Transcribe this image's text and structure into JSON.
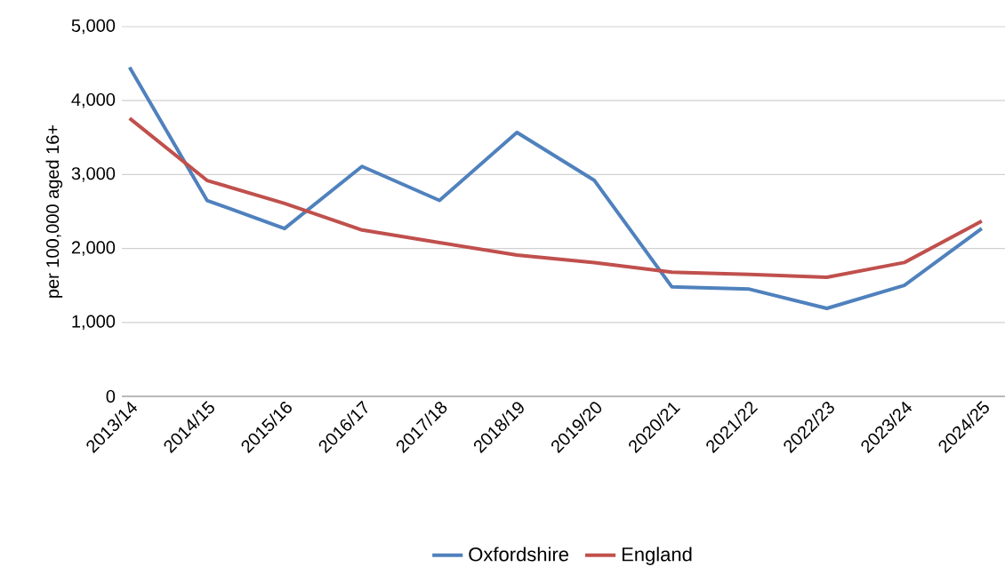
{
  "chart_data": {
    "type": "line",
    "ylabel": "per 100,000 aged 16+",
    "categories": [
      "2013/14",
      "2014/15",
      "2015/16",
      "2016/17",
      "2017/18",
      "2018/19",
      "2019/20",
      "2020/21",
      "2021/22",
      "2022/23",
      "2023/24",
      "2024/25"
    ],
    "series": [
      {
        "name": "Oxfordshire",
        "color": "#4f81bd",
        "values": [
          4450,
          2650,
          2270,
          3110,
          2650,
          3570,
          2920,
          1480,
          1450,
          1190,
          1500,
          2270
        ]
      },
      {
        "name": "England",
        "color": "#c0504d",
        "values": [
          3760,
          2920,
          2610,
          2250,
          2080,
          1910,
          1810,
          1680,
          1650,
          1610,
          1810,
          2370
        ]
      }
    ],
    "ylim": [
      0,
      5000
    ],
    "yticks": [
      {
        "value": 0,
        "label": "0"
      },
      {
        "value": 1000,
        "label": "1,000"
      },
      {
        "value": 2000,
        "label": "2,000"
      },
      {
        "value": 3000,
        "label": "3,000"
      },
      {
        "value": 4000,
        "label": "4,000"
      },
      {
        "value": 5000,
        "label": "5,000"
      }
    ],
    "grid": "y",
    "legend": "bottom",
    "marker": "none",
    "line_style": "solid"
  }
}
